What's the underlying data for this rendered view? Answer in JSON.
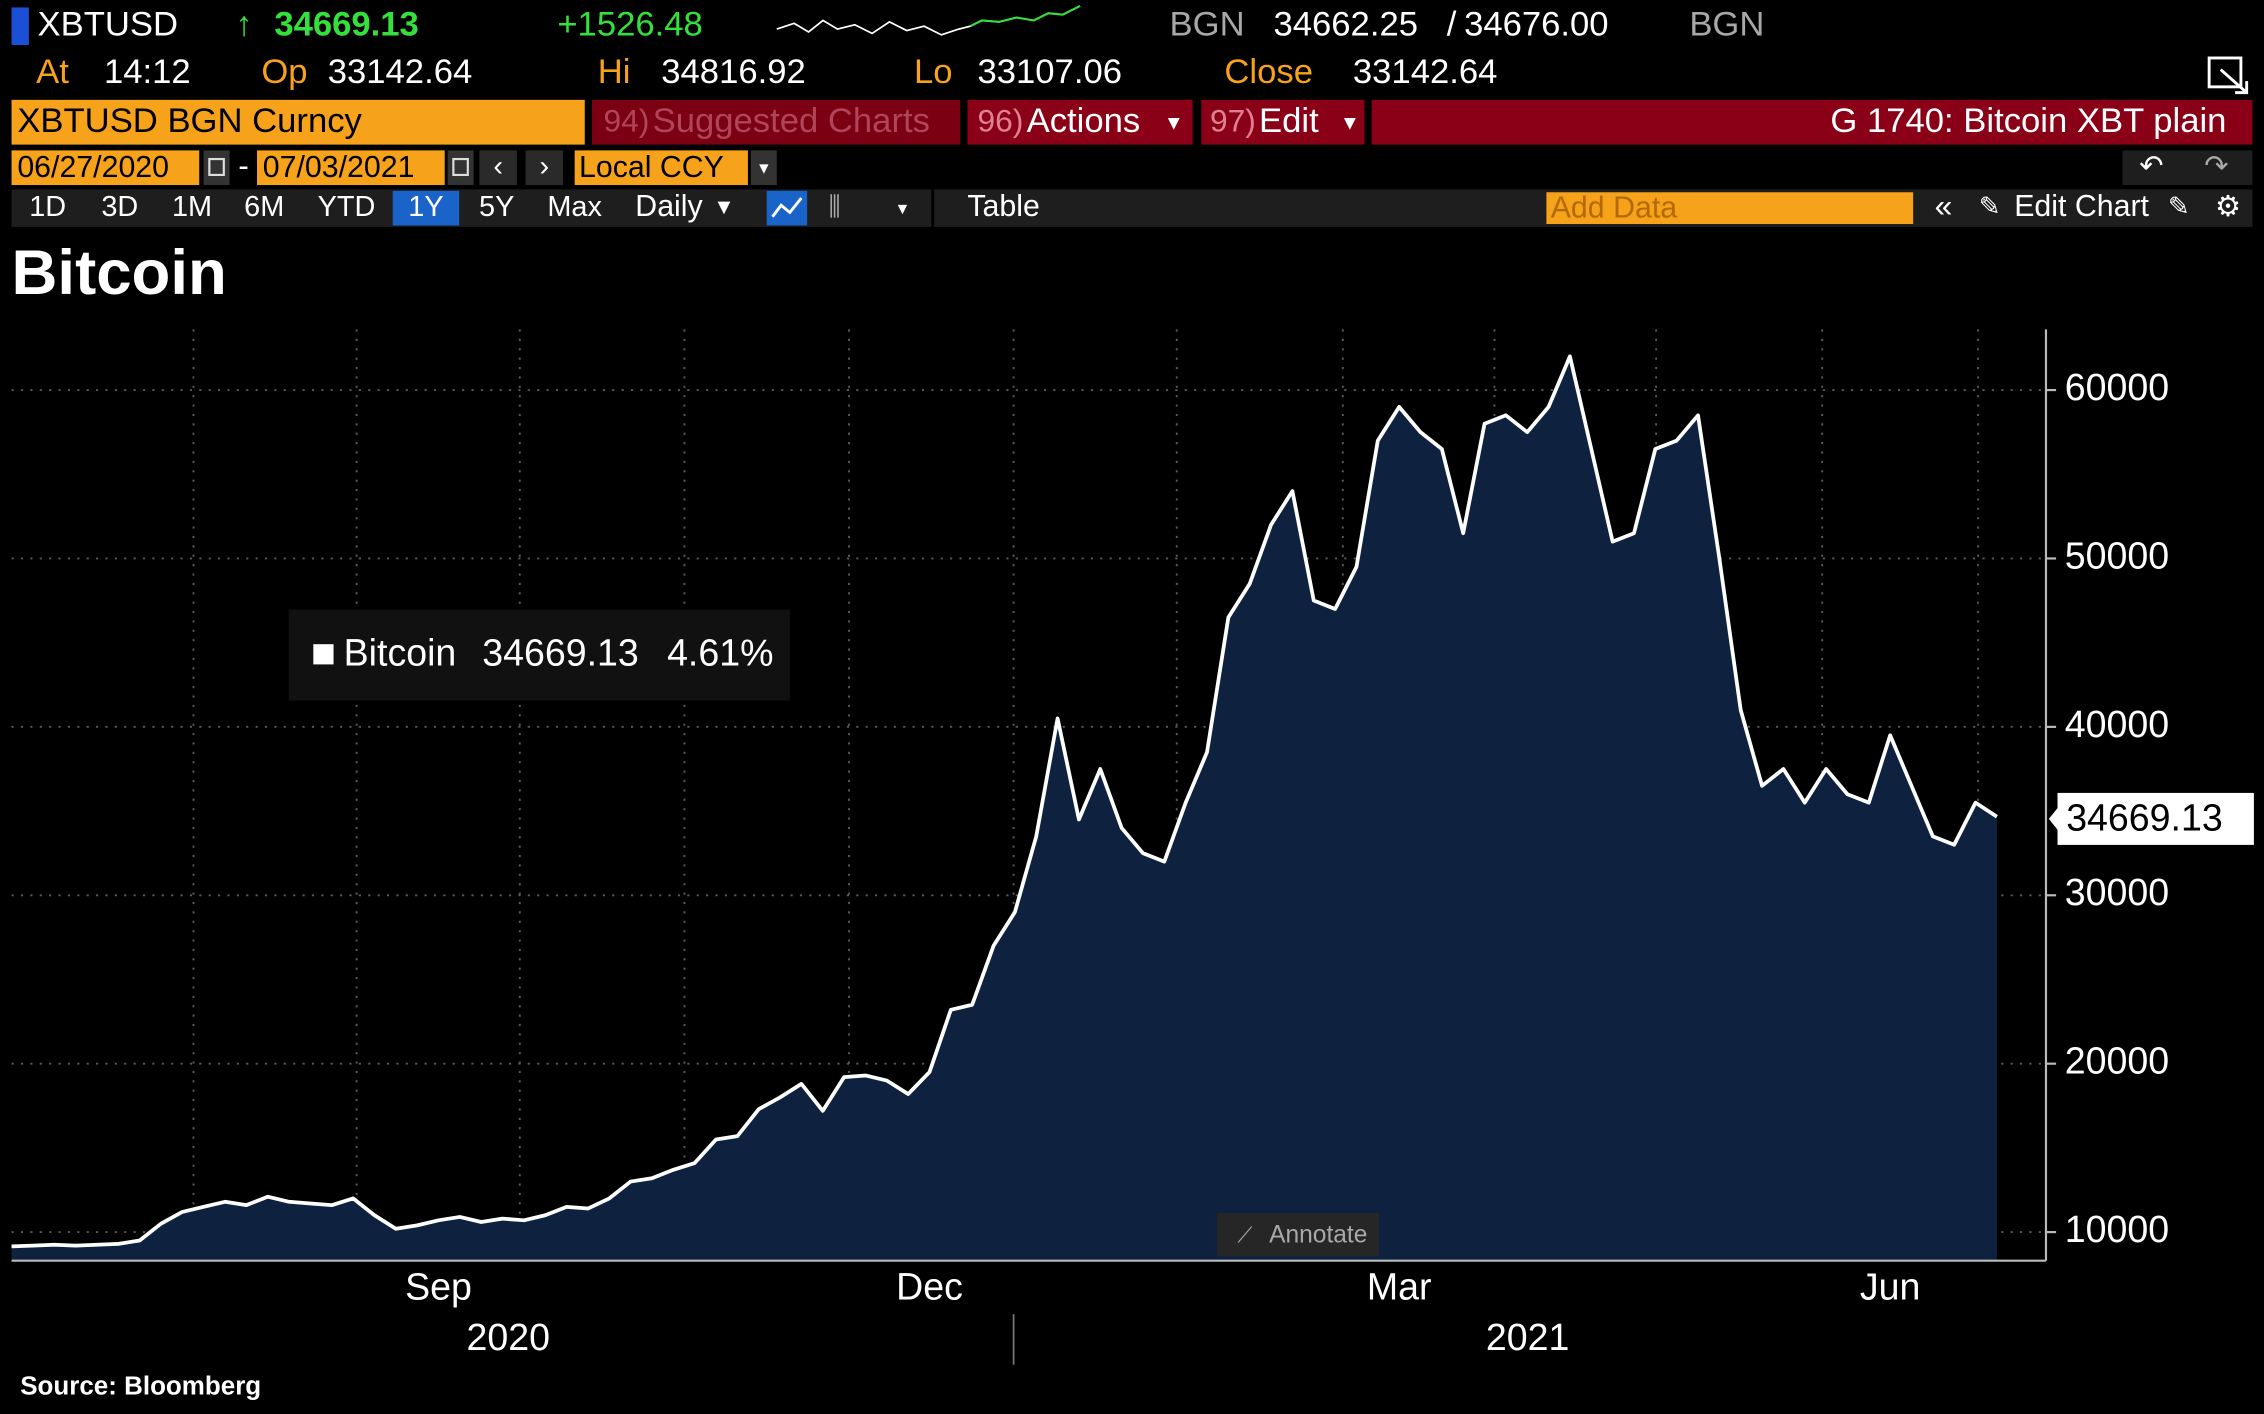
{
  "header": {
    "ticker": "XBTUSD",
    "last": "34669.13",
    "change": "+1526.48",
    "source": "BGN",
    "bid": "34662.25",
    "ask": "34676.00",
    "source_2": "BGN",
    "at_label": "At",
    "time": "14:12",
    "open_label": "Op",
    "open": "33142.64",
    "high_label": "Hi",
    "high": "34816.92",
    "low_label": "Lo",
    "low": "33107.06",
    "close_label": "Close",
    "close": "33142.64"
  },
  "menu": {
    "security": "XBTUSD BGN Curncy",
    "suggested_num": "94)",
    "suggested": "Suggested Charts",
    "actions_num": "96)",
    "actions": "Actions",
    "edit_num": "97)",
    "edit": "Edit",
    "page_title": "G 1740: Bitcoin XBT plain",
    "start_date": "06/27/2020",
    "end_date": "07/03/2021",
    "currency": "Local CCY"
  },
  "toolbar": {
    "periods": [
      "1D",
      "3D",
      "1M",
      "6M",
      "YTD",
      "1Y",
      "5Y",
      "Max"
    ],
    "interval": "Daily",
    "view": "Table",
    "add_data": "Add Data",
    "edit_chart": "Edit Chart"
  },
  "chart_data": {
    "type": "area",
    "title": "Bitcoin",
    "legend_change": "4.61%",
    "annotate": "Annotate",
    "source": "Source: Bloomberg",
    "categories": [
      null,
      null,
      null,
      null,
      null,
      null,
      null,
      null,
      null,
      null,
      null,
      null,
      null,
      null,
      null,
      null,
      null,
      null,
      null,
      null,
      "Sep",
      null,
      null,
      null,
      null,
      null,
      null,
      null,
      null,
      null,
      null,
      null,
      null,
      null,
      null,
      null,
      null,
      null,
      null,
      null,
      null,
      null,
      null,
      "Dec",
      null,
      null,
      null,
      null,
      null,
      null,
      null,
      null,
      null,
      null,
      null,
      null,
      null,
      null,
      null,
      null,
      null,
      null,
      null,
      null,
      null,
      "Mar",
      null,
      null,
      null,
      null,
      null,
      null,
      null,
      null,
      null,
      null,
      null,
      null,
      null,
      null,
      null,
      null,
      null,
      null,
      null,
      null,
      null,
      null,
      "Jun",
      null,
      null,
      null,
      null,
      null
    ],
    "year_labels": [
      "2020",
      "2021"
    ],
    "series": [
      {
        "name": "Bitcoin",
        "color": "#ffffff",
        "fill": "#0e2240",
        "values": [
          9150,
          9200,
          9250,
          9200,
          9250,
          9300,
          9500,
          10500,
          11200,
          11500,
          11800,
          11600,
          12100,
          11800,
          11700,
          11600,
          12000,
          11000,
          10200,
          10400,
          10700,
          10900,
          10600,
          10800,
          10700,
          11000,
          11500,
          11400,
          12000,
          13000,
          13200,
          13700,
          14100,
          15500,
          15700,
          17300,
          18000,
          18800,
          17200,
          19200,
          19300,
          19000,
          18200,
          19500,
          23200,
          23500,
          27000,
          29000,
          33500,
          40500,
          34500,
          37500,
          34000,
          32500,
          32000,
          35500,
          38500,
          46500,
          48500,
          52000,
          54000,
          47500,
          47000,
          49500,
          57000,
          59000,
          57500,
          56500,
          51500,
          58000,
          58500,
          57500,
          59000,
          62000,
          56500,
          51000,
          51500,
          56500,
          57000,
          58500,
          50000,
          41000,
          36500,
          37500,
          35500,
          37500,
          36000,
          35500,
          39500,
          36500,
          33500,
          33000,
          35500,
          34669.13
        ]
      }
    ],
    "ylim": [
      8300,
      63600
    ],
    "yticks": [
      10000,
      20000,
      30000,
      40000,
      50000,
      60000
    ],
    "y_axis_side": "right",
    "grid": true
  }
}
